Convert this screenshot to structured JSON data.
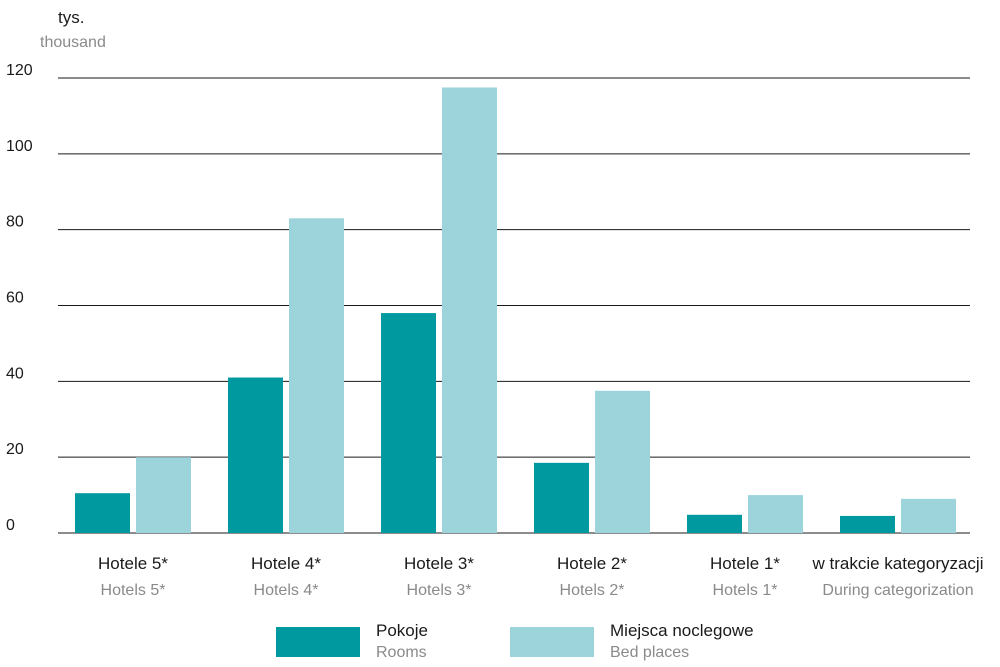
{
  "chart_data": {
    "type": "bar",
    "ylabel": "tys.",
    "ylabel_en": "thousand",
    "ylim": [
      0,
      120
    ],
    "yticks": [
      0,
      20,
      40,
      60,
      80,
      100,
      120
    ],
    "grid": true,
    "legend_position": "bottom",
    "categories": [
      {
        "pl": "Hotele 5*",
        "en": "Hotels 5*"
      },
      {
        "pl": "Hotele 4*",
        "en": "Hotels 4*"
      },
      {
        "pl": "Hotele 3*",
        "en": "Hotels 3*"
      },
      {
        "pl": "Hotele 2*",
        "en": "Hotels 2*"
      },
      {
        "pl": "Hotele 1*",
        "en": "Hotels 1*"
      },
      {
        "pl": "w trakcie kategoryzacji",
        "en": "During categorization"
      }
    ],
    "series": [
      {
        "name": "Pokoje",
        "name_en": "Rooms",
        "color": "#00999f",
        "values": [
          10.5,
          41,
          58,
          18.5,
          4.8,
          4.5
        ]
      },
      {
        "name": "Miejsca noclegowe",
        "name_en": "Bed places",
        "color": "#9dd4db",
        "values": [
          20,
          83,
          117.5,
          37.5,
          10,
          9
        ]
      }
    ]
  }
}
